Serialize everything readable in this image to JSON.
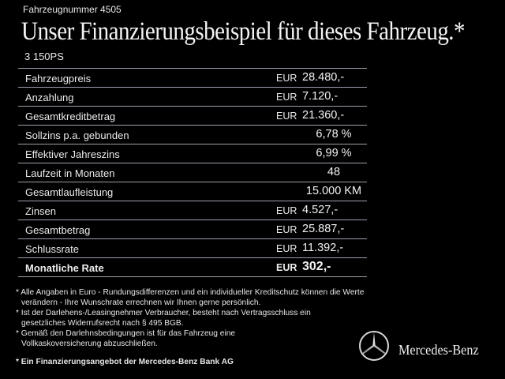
{
  "header": {
    "vehicle_number": "Fahrzeugnummer 4505",
    "title": "Unser Finanzierungsbeispiel für dieses Fahrzeug.*",
    "subtitle": "3 150PS"
  },
  "table": {
    "rows": [
      {
        "label": "Fahrzeugpreis",
        "currency": "EUR",
        "value": "28.480,-"
      },
      {
        "label": "Anzahlung",
        "currency": "EUR",
        "value": "7.120,-"
      },
      {
        "label": "Gesamtkreditbetrag",
        "currency": "EUR",
        "value": "21.360,-"
      },
      {
        "label": "Sollzins p.a. gebunden",
        "currency": "",
        "value": "6,78 %"
      },
      {
        "label": "Effektiver Jahreszins",
        "currency": "",
        "value": "6,99 %"
      },
      {
        "label": "Laufzeit in Monaten",
        "currency": "",
        "value": "48"
      },
      {
        "label": "Gesamtlaufleistung",
        "currency": "",
        "value": "15.000 KM"
      },
      {
        "label": "Zinsen",
        "currency": "EUR",
        "value": "4.527,-"
      },
      {
        "label": "Gesamtbetrag",
        "currency": "EUR",
        "value": "25.887,-"
      },
      {
        "label": "Schlussrate",
        "currency": "EUR",
        "value": "11.392,-"
      },
      {
        "label": "Monatliche Rate",
        "currency": "EUR",
        "value": "302,-"
      }
    ]
  },
  "footnotes": [
    "* Alle Angaben in Euro - Rundungsdifferenzen und ein individueller Kreditschutz können die Werte verändern - Ihre Wunschrate errechnen wir Ihnen gerne persönlich.",
    "* Ist der Darlehens-/Leasingnehmer Verbraucher, besteht nach Vertragsschluss ein gesetzliches Widerrufsrecht nach § 495 BGB.",
    "* Gemäß den Darlehnsbedingungen ist für das Fahrzeug eine Vollkaskoversicherung abzuschließen."
  ],
  "bank_note": "* Ein Finanzierungsangebot der Mercedes-Benz Bank AG",
  "brand": {
    "name": "Mercedes-Benz",
    "logo_icon": "mercedes-star-icon"
  },
  "colors": {
    "background": "#000000",
    "text": "#ffffff",
    "rule": "#9aa0ab"
  }
}
